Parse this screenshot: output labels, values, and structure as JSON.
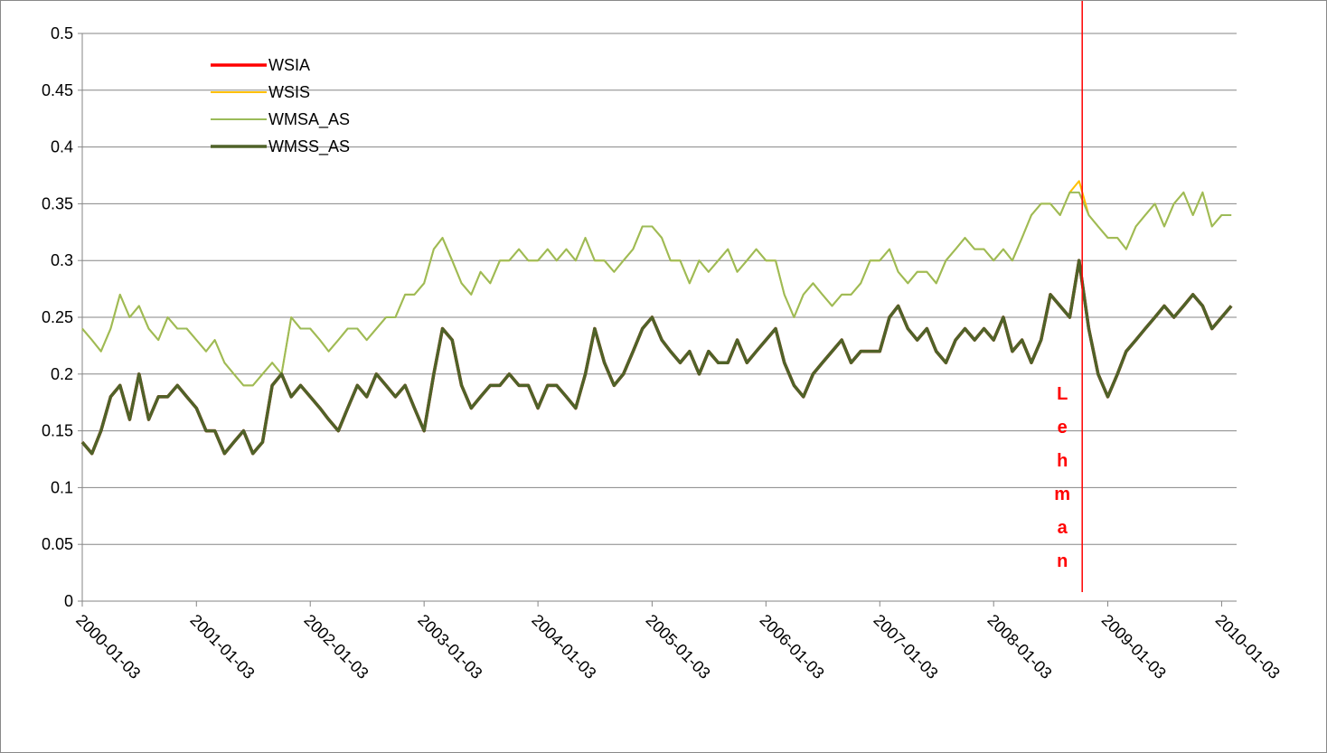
{
  "chart_data": {
    "type": "line",
    "x": [
      "2000-01-03",
      "2000-02-03",
      "2000-03-03",
      "2000-04-03",
      "2000-05-03",
      "2000-06-03",
      "2000-07-03",
      "2000-08-03",
      "2000-09-03",
      "2000-10-03",
      "2000-11-03",
      "2000-12-03",
      "2001-01-03",
      "2001-02-03",
      "2001-03-03",
      "2001-04-03",
      "2001-05-03",
      "2001-06-03",
      "2001-07-03",
      "2001-08-03",
      "2001-09-03",
      "2001-10-03",
      "2001-11-03",
      "2001-12-03",
      "2002-01-03",
      "2002-02-03",
      "2002-03-03",
      "2002-04-03",
      "2002-05-03",
      "2002-06-03",
      "2002-07-03",
      "2002-08-03",
      "2002-09-03",
      "2002-10-03",
      "2002-11-03",
      "2002-12-03",
      "2003-01-03",
      "2003-02-03",
      "2003-03-03",
      "2003-04-03",
      "2003-05-03",
      "2003-06-03",
      "2003-07-03",
      "2003-08-03",
      "2003-09-03",
      "2003-10-03",
      "2003-11-03",
      "2003-12-03",
      "2004-01-03",
      "2004-02-03",
      "2004-03-03",
      "2004-04-03",
      "2004-05-03",
      "2004-06-03",
      "2004-07-03",
      "2004-08-03",
      "2004-09-03",
      "2004-10-03",
      "2004-11-03",
      "2004-12-03",
      "2005-01-03",
      "2005-02-03",
      "2005-03-03",
      "2005-04-03",
      "2005-05-03",
      "2005-06-03",
      "2005-07-03",
      "2005-08-03",
      "2005-09-03",
      "2005-10-03",
      "2005-11-03",
      "2005-12-03",
      "2006-01-03",
      "2006-02-03",
      "2006-03-03",
      "2006-04-03",
      "2006-05-03",
      "2006-06-03",
      "2006-07-03",
      "2006-08-03",
      "2006-09-03",
      "2006-10-03",
      "2006-11-03",
      "2006-12-03",
      "2007-01-03",
      "2007-02-03",
      "2007-03-03",
      "2007-04-03",
      "2007-05-03",
      "2007-06-03",
      "2007-07-03",
      "2007-08-03",
      "2007-09-03",
      "2007-10-03",
      "2007-11-03",
      "2007-12-03",
      "2008-01-03",
      "2008-02-03",
      "2008-03-03",
      "2008-04-03",
      "2008-05-03",
      "2008-06-03",
      "2008-07-03",
      "2008-08-03",
      "2008-09-03",
      "2008-10-03",
      "2008-11-03",
      "2008-12-03",
      "2009-01-03",
      "2009-02-03",
      "2009-03-03",
      "2009-04-03",
      "2009-05-03",
      "2009-06-03",
      "2009-07-03",
      "2009-08-03",
      "2009-09-03",
      "2009-10-03",
      "2009-11-03",
      "2009-12-03",
      "2010-01-03",
      "2010-02-03"
    ],
    "series": [
      {
        "name": "WSIA",
        "color": "#ff0000",
        "values": [
          0.14,
          0.13,
          0.15,
          0.18,
          0.19,
          0.16,
          0.2,
          0.16,
          0.18,
          0.18,
          0.19,
          0.18,
          0.17,
          0.15,
          0.15,
          0.13,
          0.14,
          0.15,
          0.13,
          0.14,
          0.19,
          0.2,
          0.18,
          0.19,
          0.18,
          0.17,
          0.16,
          0.15,
          0.17,
          0.19,
          0.18,
          0.2,
          0.19,
          0.18,
          0.19,
          0.17,
          0.15,
          0.2,
          0.24,
          0.23,
          0.19,
          0.17,
          0.18,
          0.19,
          0.19,
          0.2,
          0.19,
          0.19,
          0.17,
          0.19,
          0.19,
          0.18,
          0.17,
          0.2,
          0.24,
          0.21,
          0.19,
          0.2,
          0.22,
          0.24,
          0.25,
          0.23,
          0.22,
          0.21,
          0.22,
          0.2,
          0.22,
          0.21,
          0.21,
          0.23,
          0.21,
          0.22,
          0.23,
          0.24,
          0.21,
          0.19,
          0.18,
          0.2,
          0.21,
          0.22,
          0.23,
          0.21,
          0.22,
          0.22,
          0.22,
          0.25,
          0.26,
          0.24,
          0.23,
          0.24,
          0.22,
          0.21,
          0.23,
          0.24,
          0.23,
          0.24,
          0.23,
          0.25,
          0.22,
          0.23,
          0.21,
          0.23,
          0.27,
          0.26,
          0.25,
          0.3,
          0.24,
          0.2,
          0.18,
          0.2,
          0.22,
          0.23,
          0.24,
          0.25,
          0.26,
          0.25,
          0.26,
          0.27,
          0.26,
          0.24,
          0.25,
          0.26
        ]
      },
      {
        "name": "WSIS",
        "color": "#ffc000",
        "values": [
          0.24,
          0.23,
          0.22,
          0.24,
          0.27,
          0.25,
          0.26,
          0.24,
          0.23,
          0.25,
          0.24,
          0.24,
          0.23,
          0.22,
          0.23,
          0.21,
          0.2,
          0.19,
          0.19,
          0.2,
          0.21,
          0.2,
          0.25,
          0.24,
          0.24,
          0.23,
          0.22,
          0.23,
          0.24,
          0.24,
          0.23,
          0.24,
          0.25,
          0.25,
          0.27,
          0.27,
          0.28,
          0.31,
          0.32,
          0.3,
          0.28,
          0.27,
          0.29,
          0.28,
          0.3,
          0.3,
          0.31,
          0.3,
          0.3,
          0.31,
          0.3,
          0.31,
          0.3,
          0.32,
          0.3,
          0.3,
          0.29,
          0.3,
          0.31,
          0.33,
          0.33,
          0.32,
          0.3,
          0.3,
          0.28,
          0.3,
          0.29,
          0.3,
          0.31,
          0.29,
          0.3,
          0.31,
          0.3,
          0.3,
          0.27,
          0.25,
          0.27,
          0.28,
          0.27,
          0.26,
          0.27,
          0.27,
          0.28,
          0.3,
          0.3,
          0.31,
          0.29,
          0.28,
          0.29,
          0.29,
          0.28,
          0.3,
          0.31,
          0.32,
          0.31,
          0.31,
          0.3,
          0.31,
          0.3,
          0.32,
          0.34,
          0.35,
          0.35,
          0.34,
          0.36,
          0.37,
          0.34,
          0.33,
          0.32,
          0.32,
          0.31,
          0.33,
          0.34,
          0.35,
          0.33,
          0.35,
          0.36,
          0.34,
          0.36,
          0.33,
          0.34,
          0.34
        ]
      },
      {
        "name": "WMSA_AS",
        "color": "#9bbb59",
        "values": [
          0.24,
          0.23,
          0.22,
          0.24,
          0.27,
          0.25,
          0.26,
          0.24,
          0.23,
          0.25,
          0.24,
          0.24,
          0.23,
          0.22,
          0.23,
          0.21,
          0.2,
          0.19,
          0.19,
          0.2,
          0.21,
          0.2,
          0.25,
          0.24,
          0.24,
          0.23,
          0.22,
          0.23,
          0.24,
          0.24,
          0.23,
          0.24,
          0.25,
          0.25,
          0.27,
          0.27,
          0.28,
          0.31,
          0.32,
          0.3,
          0.28,
          0.27,
          0.29,
          0.28,
          0.3,
          0.3,
          0.31,
          0.3,
          0.3,
          0.31,
          0.3,
          0.31,
          0.3,
          0.32,
          0.3,
          0.3,
          0.29,
          0.3,
          0.31,
          0.33,
          0.33,
          0.32,
          0.3,
          0.3,
          0.28,
          0.3,
          0.29,
          0.3,
          0.31,
          0.29,
          0.3,
          0.31,
          0.3,
          0.3,
          0.27,
          0.25,
          0.27,
          0.28,
          0.27,
          0.26,
          0.27,
          0.27,
          0.28,
          0.3,
          0.3,
          0.31,
          0.29,
          0.28,
          0.29,
          0.29,
          0.28,
          0.3,
          0.31,
          0.32,
          0.31,
          0.31,
          0.3,
          0.31,
          0.3,
          0.32,
          0.34,
          0.35,
          0.35,
          0.34,
          0.36,
          0.36,
          0.34,
          0.33,
          0.32,
          0.32,
          0.31,
          0.33,
          0.34,
          0.35,
          0.33,
          0.35,
          0.36,
          0.34,
          0.36,
          0.33,
          0.34,
          0.34
        ]
      },
      {
        "name": "WMSS_AS",
        "color": "#4f6228",
        "values": [
          0.14,
          0.13,
          0.15,
          0.18,
          0.19,
          0.16,
          0.2,
          0.16,
          0.18,
          0.18,
          0.19,
          0.18,
          0.17,
          0.15,
          0.15,
          0.13,
          0.14,
          0.15,
          0.13,
          0.14,
          0.19,
          0.2,
          0.18,
          0.19,
          0.18,
          0.17,
          0.16,
          0.15,
          0.17,
          0.19,
          0.18,
          0.2,
          0.19,
          0.18,
          0.19,
          0.17,
          0.15,
          0.2,
          0.24,
          0.23,
          0.19,
          0.17,
          0.18,
          0.19,
          0.19,
          0.2,
          0.19,
          0.19,
          0.17,
          0.19,
          0.19,
          0.18,
          0.17,
          0.2,
          0.24,
          0.21,
          0.19,
          0.2,
          0.22,
          0.24,
          0.25,
          0.23,
          0.22,
          0.21,
          0.22,
          0.2,
          0.22,
          0.21,
          0.21,
          0.23,
          0.21,
          0.22,
          0.23,
          0.24,
          0.21,
          0.19,
          0.18,
          0.2,
          0.21,
          0.22,
          0.23,
          0.21,
          0.22,
          0.22,
          0.22,
          0.25,
          0.26,
          0.24,
          0.23,
          0.24,
          0.22,
          0.21,
          0.23,
          0.24,
          0.23,
          0.24,
          0.23,
          0.25,
          0.22,
          0.23,
          0.21,
          0.23,
          0.27,
          0.26,
          0.25,
          0.3,
          0.24,
          0.2,
          0.18,
          0.2,
          0.22,
          0.23,
          0.24,
          0.25,
          0.26,
          0.25,
          0.26,
          0.27,
          0.26,
          0.24,
          0.25,
          0.26
        ]
      }
    ],
    "xlim": [
      "2000-01-03",
      "2010-02-20"
    ],
    "xticks": [
      "2000-01-03",
      "2001-01-03",
      "2002-01-03",
      "2003-01-03",
      "2004-01-03",
      "2005-01-03",
      "2006-01-03",
      "2007-01-03",
      "2008-01-03",
      "2009-01-03",
      "2010-01-03"
    ],
    "ylim": [
      0,
      0.5
    ],
    "yticks": [
      0,
      0.05,
      0.1,
      0.15,
      0.2,
      0.25,
      0.3,
      0.35,
      0.4,
      0.45,
      0.5
    ],
    "grid": true,
    "legend": "top-left",
    "annotations": [
      {
        "text": "Lehman",
        "x": "2008-10-13",
        "color": "#ff0000"
      }
    ]
  }
}
